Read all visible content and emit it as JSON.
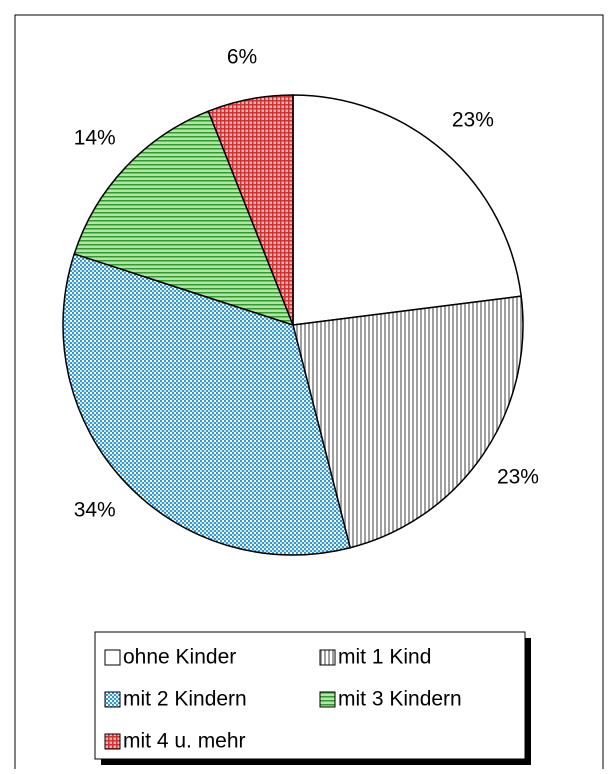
{
  "chart_data": {
    "type": "pie",
    "categories": [
      "ohne Kinder",
      "mit 1 Kind",
      "mit 2 Kindern",
      "mit 3 Kindern",
      "mit 4 u. mehr"
    ],
    "values": [
      23,
      23,
      34,
      14,
      6
    ],
    "value_labels": [
      "23%",
      "23%",
      "34%",
      "14%",
      "6%"
    ],
    "colors": [
      "#ffffff",
      "#a0a0a0",
      "#3399cc",
      "#339933",
      "#cc3333"
    ],
    "legend": "bottom"
  }
}
